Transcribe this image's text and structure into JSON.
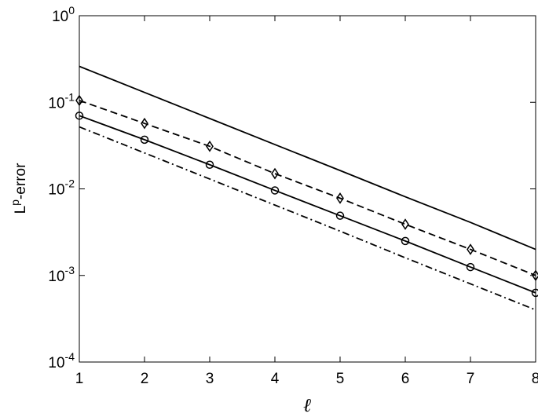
{
  "chart_data": {
    "type": "line",
    "xlabel": "ℓ",
    "ylabel": [
      "L",
      "p",
      "-error"
    ],
    "x": [
      1,
      2,
      3,
      4,
      5,
      6,
      7,
      8
    ],
    "series": [
      {
        "color": "#000000",
        "dash": "solid",
        "values": [
          0.26,
          0.13,
          0.065,
          0.0325,
          0.0163,
          0.0081,
          0.0041,
          0.002
        ]
      },
      {
        "color": "#000000",
        "dash": "dashed",
        "marker": "diamond",
        "values": [
          0.105,
          0.057,
          0.031,
          0.015,
          0.0078,
          0.0039,
          0.002,
          0.001
        ]
      },
      {
        "color": "#000000",
        "dash": "solid",
        "marker": "circle",
        "values": [
          0.07,
          0.037,
          0.019,
          0.0096,
          0.0049,
          0.0025,
          0.00125,
          0.00063
        ]
      },
      {
        "color": "#000000",
        "dash": "dashdot",
        "values": [
          0.052,
          0.026,
          0.013,
          0.0065,
          0.00325,
          0.0016,
          0.0008,
          0.0004
        ]
      }
    ],
    "xlim": [
      1,
      8
    ],
    "xticks": [
      1,
      2,
      3,
      4,
      5,
      6,
      7,
      8
    ],
    "ylim": [
      0.0001,
      1
    ],
    "yscale": "log",
    "yticks": [
      {
        "value": 0.0001,
        "label": [
          "10",
          "-4"
        ]
      },
      {
        "value": 0.001,
        "label": [
          "10",
          "-3"
        ]
      },
      {
        "value": 0.01,
        "label": [
          "10",
          "-2"
        ]
      },
      {
        "value": 0.1,
        "label": [
          "10",
          "-1"
        ]
      },
      {
        "value": 1,
        "label": [
          "10",
          "0"
        ]
      }
    ]
  }
}
